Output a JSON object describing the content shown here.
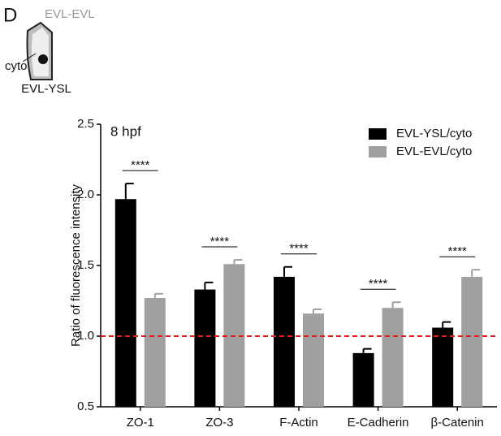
{
  "panel_label": "D",
  "diagram": {
    "top_label": "EVL-EVL",
    "side_label": "cyto",
    "bottom_label": "EVL-YSL"
  },
  "chart_data": {
    "type": "bar",
    "annotation": "8 hpf",
    "ylabel": "Ratio of fluorescence intensity",
    "categories": [
      "ZO-1",
      "ZO-3",
      "F-Actin",
      "E-Cadherin",
      "β-Catenin"
    ],
    "series": [
      {
        "name": "EVL-YSL/cyto",
        "color": "#000000",
        "values": [
          1.97,
          1.33,
          1.42,
          0.88,
          1.06
        ],
        "errors": [
          0.11,
          0.05,
          0.07,
          0.03,
          0.04
        ]
      },
      {
        "name": "EVL-EVL/cyto",
        "color": "#a0a0a0",
        "values": [
          1.27,
          1.51,
          1.16,
          1.2,
          1.42
        ],
        "errors": [
          0.03,
          0.03,
          0.03,
          0.04,
          0.05
        ]
      }
    ],
    "significance": [
      "****",
      "****",
      "****",
      "****",
      "****"
    ],
    "reference_line": 1.0,
    "reference_color": "#e02020",
    "ylim": [
      0.5,
      2.5
    ],
    "yticks": [
      0.5,
      {
        "value": 1.0,
        "label": "1.0"
      },
      1.5,
      {
        "value": 2.0,
        "label": "2.0"
      },
      2.5
    ],
    "legend": "upper right"
  }
}
